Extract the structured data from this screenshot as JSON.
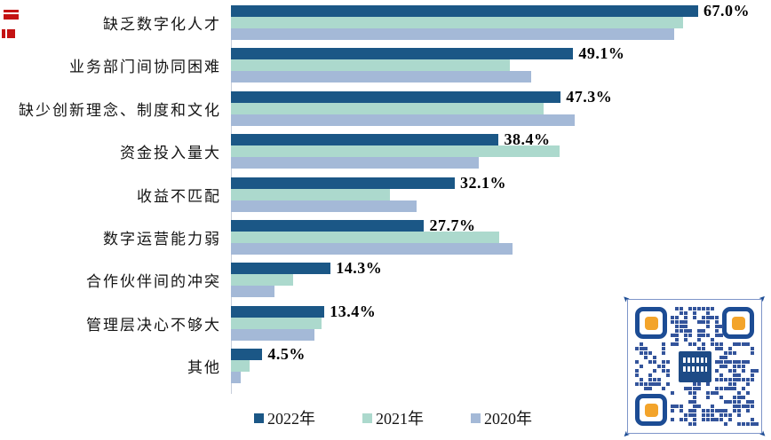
{
  "chart_data": {
    "type": "bar",
    "orientation": "horizontal",
    "title": "",
    "xlabel": "",
    "ylabel": "",
    "value_axis_max": 71,
    "grid": false,
    "legend_position": "bottom",
    "categories": [
      "缺乏数字化人才",
      "业务部门间协同困难",
      "缺少创新理念、制度和文化",
      "资金投入量大",
      "收益不匹配",
      "数字运营能力弱",
      "合作伙伴间的冲突",
      "管理层决心不够大",
      "其他"
    ],
    "series": [
      {
        "key": "2022",
        "name": "2022年",
        "color": "#1b5786",
        "values": [
          67.0,
          49.1,
          47.3,
          38.4,
          32.1,
          27.7,
          14.3,
          13.4,
          4.5
        ]
      },
      {
        "key": "2021",
        "name": "2021年",
        "color": "#acd9cd",
        "values": [
          64.8,
          40.0,
          44.8,
          47.1,
          22.8,
          38.5,
          8.9,
          13.0,
          2.7
        ]
      },
      {
        "key": "2020",
        "name": "2020年",
        "color": "#a4b9d7",
        "values": [
          63.6,
          43.0,
          49.3,
          35.6,
          26.6,
          40.4,
          6.2,
          12.0,
          1.4
        ]
      }
    ],
    "data_labels_series": "2022年",
    "data_labels": [
      "67.0%",
      "49.1%",
      "47.3%",
      "38.4%",
      "32.1%",
      "27.7%",
      "14.3%",
      "13.4%",
      "4.5%"
    ]
  },
  "legend": {
    "items": [
      {
        "label": "2022年",
        "color": "#1b5786"
      },
      {
        "label": "2021年",
        "color": "#acd9cd"
      },
      {
        "label": "2020年",
        "color": "#a4b9d7"
      }
    ]
  },
  "qr_code": {
    "module_color": "#33549b",
    "finder_border_color": "#1c4c94",
    "finder_dot_color": "#f3a42b",
    "logo_color": "#1e4b86",
    "frame_color": "#7e95c9"
  },
  "colors": {
    "background": "#ffffff",
    "axis_line": "#c7cedb",
    "data_label_text": "#000000",
    "category_text": "#141414",
    "watermark_red": "#c41212"
  }
}
